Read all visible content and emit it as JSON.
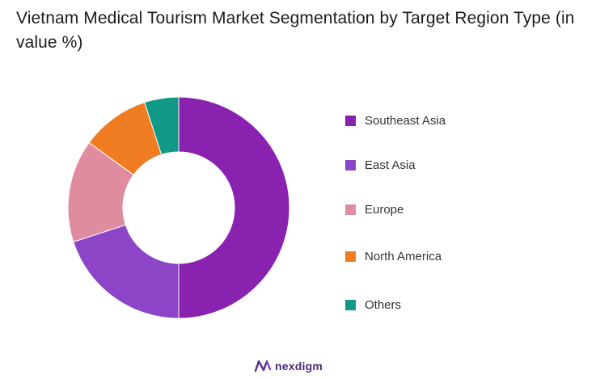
{
  "title": "Vietnam Medical Tourism Market Segmentation by Target Region Type (in value %)",
  "brand": {
    "name": "nexdigm",
    "icon": "nexdigm-logo-icon"
  },
  "chart_data": {
    "type": "pie",
    "title": "Vietnam Medical Tourism Market Segmentation by Target Region Type (in value %)",
    "donut": true,
    "legend_position": "right",
    "series": [
      {
        "name": "Southeast Asia",
        "value": 50,
        "color": "#8a22b0"
      },
      {
        "name": "East Asia",
        "value": 20,
        "color": "#8c45c6"
      },
      {
        "name": "Europe",
        "value": 15,
        "color": "#e08ca0"
      },
      {
        "name": "North America",
        "value": 10,
        "color": "#f07c22"
      },
      {
        "name": "Others",
        "value": 5,
        "color": "#109987"
      }
    ]
  }
}
